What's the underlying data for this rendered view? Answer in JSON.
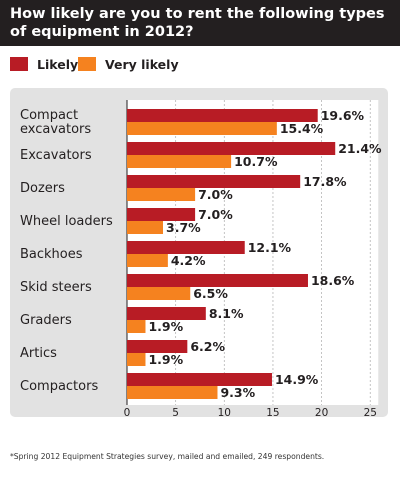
{
  "title": "How likely are you to rent the following types of equipment in 2012?",
  "legend": [
    {
      "label": "Likely",
      "color": "#b81c25"
    },
    {
      "label": "Very likely",
      "color": "#f5821f"
    }
  ],
  "footnote": "*Spring 2012 Equipment Strategies survey, mailed and emailed, 249 respondents.",
  "chart_data": {
    "type": "bar",
    "orientation": "horizontal",
    "title": "How likely are you to rent the following types of equipment in 2012?",
    "categories": [
      "Compact excavators",
      "Excavators",
      "Dozers",
      "Wheel loaders",
      "Backhoes",
      "Skid steers",
      "Graders",
      "Artics",
      "Compactors"
    ],
    "category_lines": [
      [
        "Compact",
        "excavators"
      ],
      [
        "Excavators"
      ],
      [
        "Dozers"
      ],
      [
        "Wheel loaders"
      ],
      [
        "Backhoes"
      ],
      [
        "Skid steers"
      ],
      [
        "Graders"
      ],
      [
        "Artics"
      ],
      [
        "Compactors"
      ]
    ],
    "series": [
      {
        "name": "Likely",
        "color": "#b81c25",
        "values": [
          19.6,
          21.4,
          17.8,
          7.0,
          12.1,
          18.6,
          8.1,
          6.2,
          14.9
        ]
      },
      {
        "name": "Very likely",
        "color": "#f5821f",
        "values": [
          15.4,
          10.7,
          7.0,
          3.7,
          4.2,
          6.5,
          1.9,
          1.9,
          9.3
        ]
      }
    ],
    "value_suffix": "%",
    "xlim": [
      0,
      25
    ],
    "xticks": [
      0,
      5,
      10,
      15,
      20,
      25
    ],
    "grid": true,
    "legend_position": "top-left"
  }
}
